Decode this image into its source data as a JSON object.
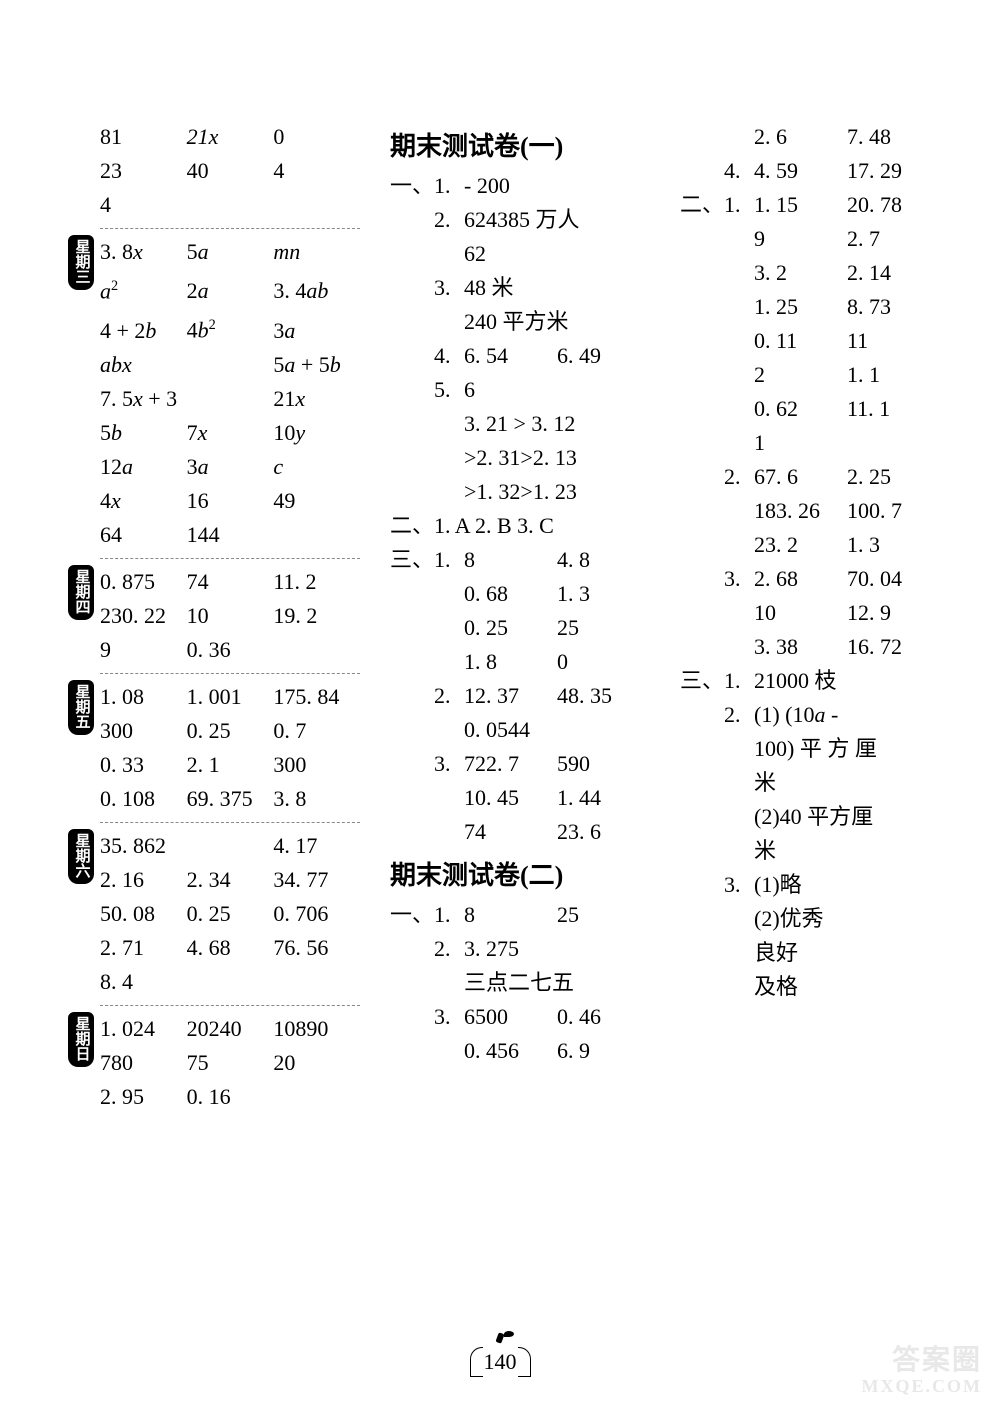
{
  "pageNumber": "140",
  "watermark": {
    "line1": "答案圈",
    "line2": "MXQE.COM"
  },
  "dayTabs": {
    "wed": "星期三",
    "thu": "星期四",
    "fri": "星期五",
    "sat": "星期六",
    "sun": "星期日"
  },
  "col1": {
    "topRows": [
      [
        "81",
        "21x",
        "0"
      ],
      [
        "23",
        "40",
        "4"
      ],
      [
        "4",
        "",
        ""
      ]
    ],
    "wed": [
      [
        "3. 8x",
        "5a",
        "mn"
      ],
      [
        "a²",
        "2a",
        "3. 4ab"
      ],
      [
        "4 + 2b",
        "4b²",
        "3a"
      ],
      [
        "abx",
        "",
        "5a + 5b"
      ],
      [
        "7. 5x + 3",
        "",
        "21x"
      ],
      [
        "5b",
        "7x",
        "10y"
      ],
      [
        "12a",
        "3a",
        "c"
      ],
      [
        "4x",
        "16",
        "49"
      ],
      [
        "64",
        "144",
        ""
      ]
    ],
    "thu": [
      [
        "0. 875",
        "74",
        "11. 2"
      ],
      [
        "230. 22",
        "10",
        "19. 2"
      ],
      [
        "9",
        "0. 36",
        ""
      ]
    ],
    "fri": [
      [
        "1. 08",
        "1. 001",
        "175. 84"
      ],
      [
        "300",
        "0. 25",
        "0. 7"
      ],
      [
        "0. 33",
        "2. 1",
        "300"
      ],
      [
        "0. 108",
        "69. 375",
        "3. 8"
      ]
    ],
    "sat": [
      [
        "35. 862",
        "",
        "4. 17"
      ],
      [
        "2. 16",
        "2. 34",
        "34. 77"
      ],
      [
        "50. 08",
        "0. 25",
        "0. 706"
      ],
      [
        "2. 71",
        "4. 68",
        "76. 56"
      ],
      [
        "8. 4",
        "",
        ""
      ]
    ],
    "sun": [
      [
        "1. 024",
        "20240",
        "10890"
      ],
      [
        "780",
        "75",
        "20"
      ],
      [
        "2. 95",
        "0. 16",
        ""
      ]
    ]
  },
  "col2": {
    "title1": "期末测试卷(一)",
    "s1": {
      "mark": "一、",
      "rows": [
        [
          "1.",
          "- 200",
          ""
        ],
        [
          "2.",
          "624385 万人",
          ""
        ],
        [
          "",
          "62",
          ""
        ],
        [
          "3.",
          "48 米",
          ""
        ],
        [
          "",
          "240 平方米",
          ""
        ],
        [
          "4.",
          "6. 54",
          "6. 49"
        ],
        [
          "5.",
          "6",
          ""
        ],
        [
          "",
          "3. 21 > 3. 12",
          ""
        ],
        [
          "",
          ">2. 31>2. 13",
          ""
        ],
        [
          "",
          ">1. 32>1. 23",
          ""
        ]
      ]
    },
    "s2": {
      "mark": "二、",
      "line": "1. A  2. B  3. C"
    },
    "s3": {
      "mark": "三、",
      "rows": [
        [
          "1.",
          "8",
          "4. 8"
        ],
        [
          "",
          "0. 68",
          "1. 3"
        ],
        [
          "",
          "0. 25",
          "25"
        ],
        [
          "",
          "1. 8",
          "0"
        ],
        [
          "2.",
          "12. 37",
          "48. 35"
        ],
        [
          "",
          "0. 0544",
          ""
        ],
        [
          "3.",
          "722. 7",
          "590"
        ],
        [
          "",
          "10. 45",
          "1. 44"
        ],
        [
          "",
          "74",
          "23. 6"
        ]
      ]
    },
    "title2": "期末测试卷(二)",
    "s4": {
      "mark": "一、",
      "rows": [
        [
          "1.",
          "8",
          "25"
        ],
        [
          "2.",
          "3. 275",
          ""
        ],
        [
          "",
          "三点二七五",
          ""
        ],
        [
          "3.",
          "6500",
          "0. 46"
        ],
        [
          "",
          "0. 456",
          "6. 9"
        ]
      ]
    }
  },
  "col3": {
    "topRows": [
      [
        "",
        "2. 6",
        "7. 48"
      ],
      [
        "4.",
        "4. 59",
        "17. 29"
      ]
    ],
    "s2": {
      "mark": "二、",
      "rows": [
        [
          "1.",
          "1. 15",
          "20. 78"
        ],
        [
          "",
          "9",
          "2. 7"
        ],
        [
          "",
          "3. 2",
          "2. 14"
        ],
        [
          "",
          "1. 25",
          "8. 73"
        ],
        [
          "",
          "0. 11",
          "11"
        ],
        [
          "",
          "2",
          "1. 1"
        ],
        [
          "",
          "0. 62",
          "11. 1"
        ],
        [
          "",
          "1",
          ""
        ],
        [
          "2.",
          "67. 6",
          "2. 25"
        ],
        [
          "",
          "183. 26",
          "100. 7"
        ],
        [
          "",
          "23. 2",
          "1. 3"
        ],
        [
          "3.",
          "2. 68",
          "70. 04"
        ],
        [
          "",
          "10",
          "12. 9"
        ],
        [
          "",
          "3. 38",
          "16. 72"
        ]
      ]
    },
    "s3": {
      "mark": "三、",
      "rows": [
        [
          "1.",
          "21000 枝"
        ],
        [
          "2.",
          "(1) (10a -"
        ],
        [
          "",
          "100) 平 方 厘"
        ],
        [
          "",
          "米"
        ],
        [
          "",
          "(2)40 平方厘"
        ],
        [
          "",
          "米"
        ],
        [
          "3.",
          "(1)略"
        ],
        [
          "",
          "(2)优秀"
        ],
        [
          "",
          "良好"
        ],
        [
          "",
          "及格"
        ]
      ]
    }
  }
}
